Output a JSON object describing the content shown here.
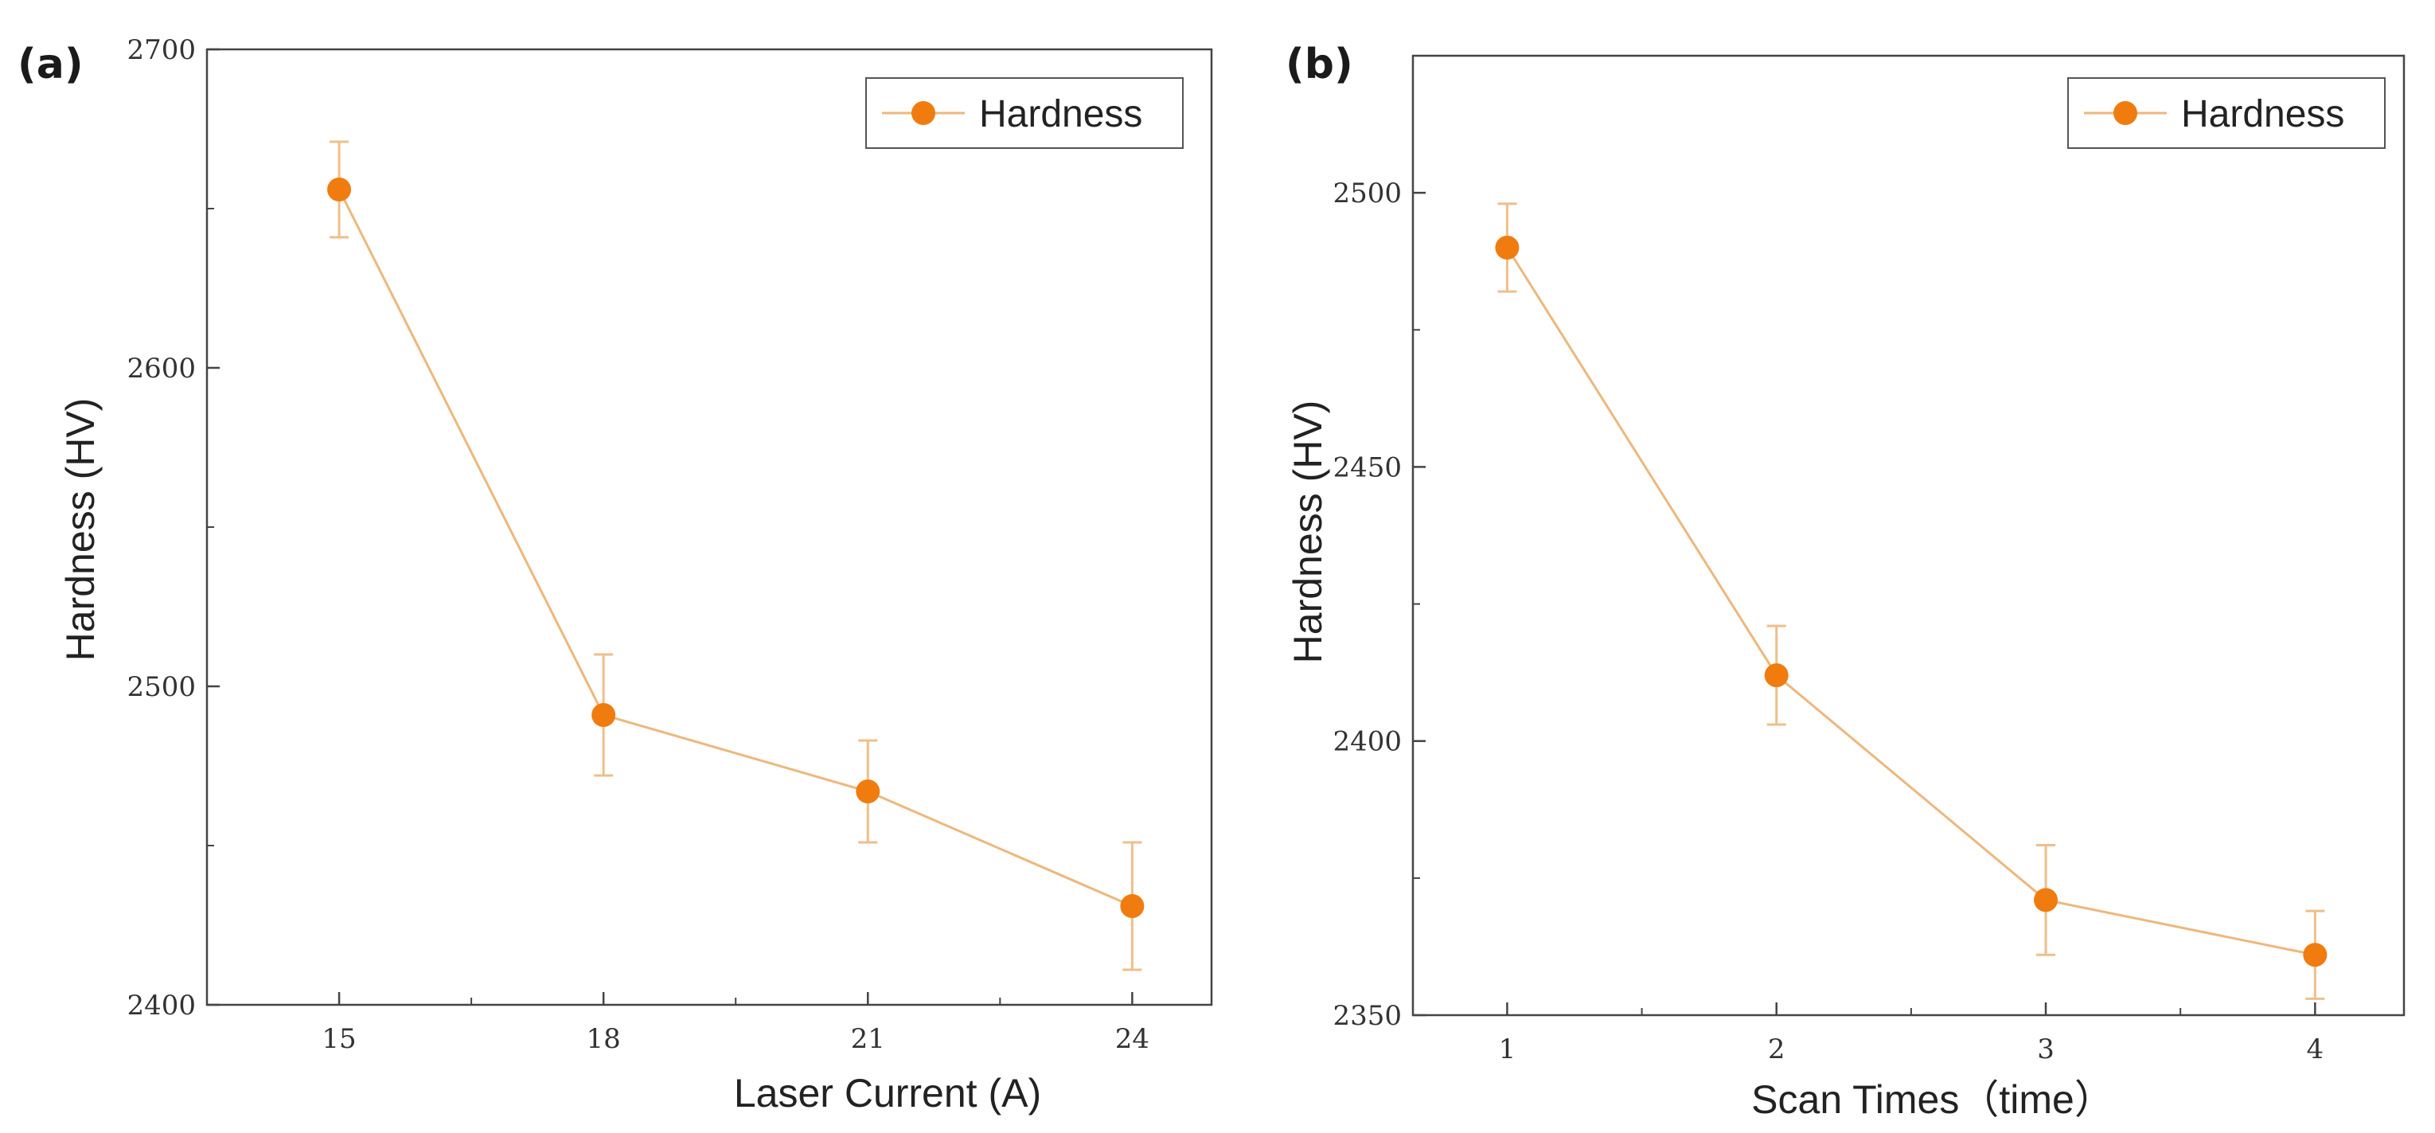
{
  "chart_data": [
    {
      "type": "line",
      "panel_label": "(a)",
      "xlabel": "Laser Current (A)",
      "ylabel": "Hardness (HV)",
      "categories": [
        "15",
        "18",
        "21",
        "24"
      ],
      "x": [
        15,
        18,
        21,
        24
      ],
      "xlim": [
        13.5,
        24.9
      ],
      "xticks": [
        15,
        18,
        21,
        24
      ],
      "xminor": [
        16.5,
        19.5,
        22.5
      ],
      "ylim": [
        2400,
        2700
      ],
      "yticks": [
        2400,
        2500,
        2600,
        2700
      ],
      "yminor": [
        2450,
        2550,
        2650
      ],
      "legend_position": "top-right",
      "series": [
        {
          "name": "Hardness",
          "color": "#f07c0f",
          "line_color": "#eeb77d",
          "error_color": "#eebf8a",
          "values": [
            2656,
            2491,
            2467,
            2431
          ],
          "errors": [
            15,
            19,
            16,
            20
          ]
        }
      ]
    },
    {
      "type": "line",
      "panel_label": "(b)",
      "xlabel": "Scan Times（time）",
      "ylabel": "Hardness (HV)",
      "categories": [
        "1",
        "2",
        "3",
        "4"
      ],
      "x": [
        1,
        2,
        3,
        4
      ],
      "xlim": [
        0.65,
        4.33
      ],
      "xticks": [
        1,
        2,
        3,
        4
      ],
      "xminor": [
        1.5,
        2.5,
        3.5
      ],
      "ylim": [
        2350,
        2525
      ],
      "yticks": [
        2350,
        2400,
        2450,
        2500
      ],
      "yminor": [
        2375,
        2425,
        2475
      ],
      "legend_position": "top-right",
      "series": [
        {
          "name": "Hardness",
          "color": "#f07c0f",
          "line_color": "#eeb77d",
          "error_color": "#eebf8a",
          "values": [
            2490,
            2412,
            2371,
            2361
          ],
          "errors": [
            8,
            9,
            10,
            8
          ]
        }
      ]
    }
  ]
}
